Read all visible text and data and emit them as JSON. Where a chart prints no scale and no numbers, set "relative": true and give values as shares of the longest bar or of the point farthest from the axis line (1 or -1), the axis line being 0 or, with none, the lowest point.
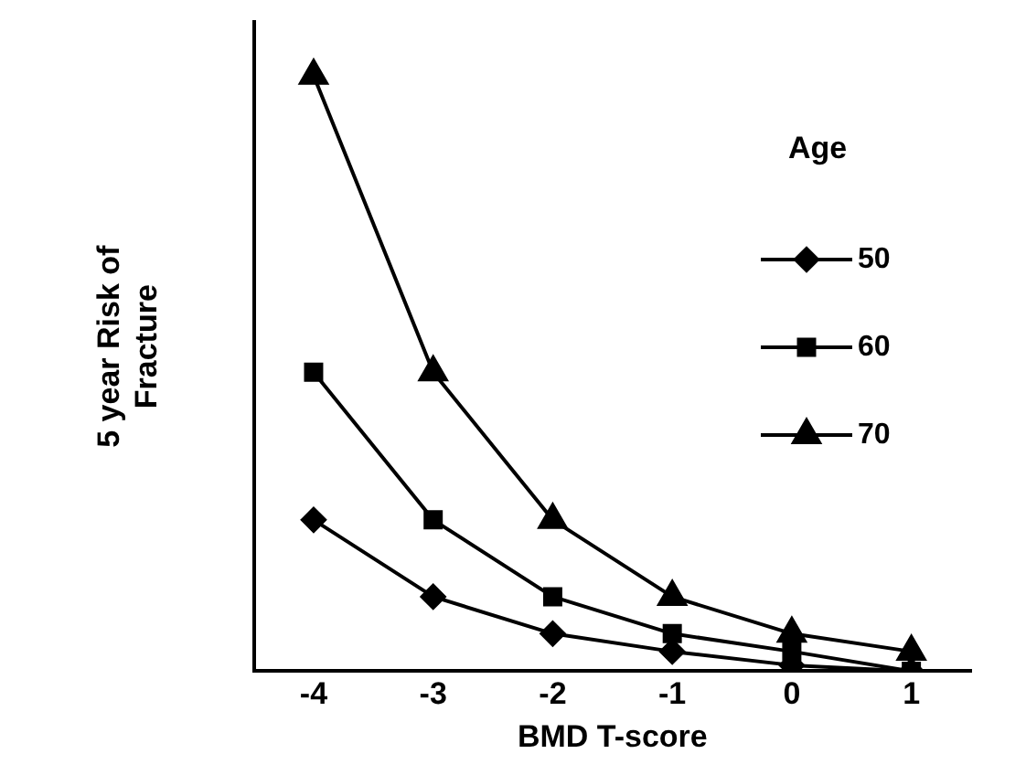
{
  "chart_data": {
    "type": "line",
    "relative": true,
    "xlabel": "BMD T-score",
    "ylabel": "5 year Risk of Fracture",
    "legend_title": "Age",
    "legend": "right",
    "grid": false,
    "categories": [
      "-4",
      "-3",
      "-2",
      "-1",
      "0",
      "1"
    ],
    "series": [
      {
        "name": "50",
        "color": "#000000",
        "marker": "diamond",
        "values": [
          0.254,
          0.125,
          0.063,
          0.033,
          0.01,
          0
        ]
      },
      {
        "name": "60",
        "color": "#000000",
        "marker": "square",
        "values": [
          0.502,
          0.254,
          0.125,
          0.063,
          0.033,
          0
        ]
      },
      {
        "name": "70",
        "color": "#000000",
        "marker": "triangle",
        "values": [
          1,
          0.502,
          0.254,
          0.125,
          0.063,
          0.033
        ]
      }
    ]
  }
}
